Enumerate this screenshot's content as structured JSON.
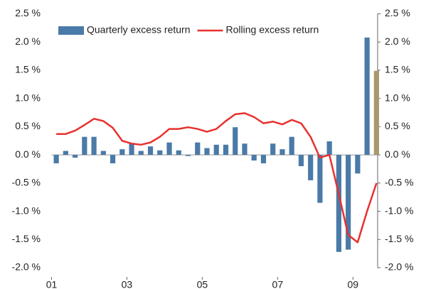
{
  "chart_data": {
    "type": "bar_line",
    "categories": [
      "01",
      null,
      null,
      null,
      null,
      null,
      null,
      null,
      "03",
      null,
      null,
      null,
      null,
      null,
      null,
      null,
      "05",
      null,
      null,
      null,
      null,
      null,
      null,
      null,
      "07",
      null,
      null,
      null,
      null,
      null,
      null,
      null,
      "09",
      null,
      null
    ],
    "series": [
      {
        "name": "Quarterly excess return",
        "type": "bar",
        "color": "#4a7aa8",
        "colors": [
          "#4a7aa8",
          "#4a7aa8",
          "#4a7aa8",
          "#4a7aa8",
          "#4a7aa8",
          "#4a7aa8",
          "#4a7aa8",
          "#4a7aa8",
          "#4a7aa8",
          "#4a7aa8",
          "#4a7aa8",
          "#4a7aa8",
          "#4a7aa8",
          "#4a7aa8",
          "#4a7aa8",
          "#4a7aa8",
          "#4a7aa8",
          "#4a7aa8",
          "#4a7aa8",
          "#4a7aa8",
          "#4a7aa8",
          "#4a7aa8",
          "#4a7aa8",
          "#4a7aa8",
          "#4a7aa8",
          "#4a7aa8",
          "#4a7aa8",
          "#4a7aa8",
          "#4a7aa8",
          "#4a7aa8",
          "#4a7aa8",
          "#4a7aa8",
          "#4a7aa8",
          "#4a7aa8",
          "#a8986e"
        ],
        "values": [
          -0.15,
          0.07,
          -0.05,
          0.32,
          0.32,
          0.07,
          -0.15,
          0.1,
          0.2,
          0.07,
          0.15,
          0.08,
          0.22,
          0.08,
          -0.02,
          0.22,
          0.12,
          0.18,
          0.18,
          0.49,
          0.2,
          -0.1,
          -0.15,
          0.2,
          0.1,
          0.32,
          -0.2,
          -0.45,
          -0.85,
          0.24,
          -1.72,
          -1.68,
          -0.33,
          2.08,
          1.49
        ]
      },
      {
        "name": "Rolling excess return",
        "type": "line",
        "color": "#e8312f",
        "values": [
          0.37,
          0.37,
          0.43,
          0.53,
          0.64,
          0.6,
          0.48,
          0.25,
          0.2,
          0.18,
          0.22,
          0.32,
          0.46,
          0.46,
          0.49,
          0.46,
          0.41,
          0.46,
          0.6,
          0.72,
          0.74,
          0.67,
          0.56,
          0.59,
          0.54,
          0.62,
          0.56,
          0.32,
          -0.05,
          0.0,
          -0.7,
          -1.42,
          -1.55,
          -1.0,
          -0.5
        ]
      }
    ],
    "ylim": [
      -2.0,
      2.5
    ],
    "yticks": [
      {
        "value": 2.5,
        "label": "2.5 %"
      },
      {
        "value": 2.0,
        "label": "2.0 %"
      },
      {
        "value": 1.5,
        "label": "1.5 %"
      },
      {
        "value": 1.0,
        "label": "1.0 %"
      },
      {
        "value": 0.5,
        "label": "0.5 %"
      },
      {
        "value": 0.0,
        "label": "0.0 %"
      },
      {
        "value": -0.5,
        "label": "-0.5 %"
      },
      {
        "value": -1.0,
        "label": "-1.0 %"
      },
      {
        "value": -1.5,
        "label": "-1.5 %"
      },
      {
        "value": -2.0,
        "label": "-2.0 %"
      }
    ],
    "legend": "top-left"
  }
}
